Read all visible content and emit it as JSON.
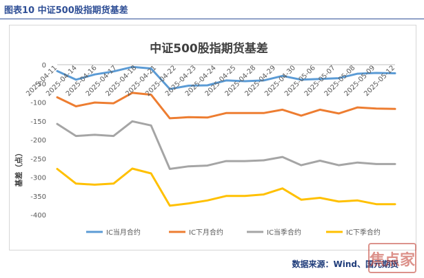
{
  "header": {
    "caption": "图表10  中证500股指期货基差"
  },
  "source": "数据来源：Wind、国元期货",
  "chart_data": {
    "type": "line",
    "title": "中证500股指期货基差",
    "ylabel": "基差（点）",
    "xlabel": "",
    "ylim": [
      -400,
      0
    ],
    "yticks": [
      0,
      -50,
      -100,
      -150,
      -200,
      -250,
      -300,
      -350,
      -400
    ],
    "grid": false,
    "legend_position": "bottom",
    "x": [
      "2025-04-11",
      "2025-04-14",
      "2025-04-15",
      "2025-04-16",
      "2025-04-17",
      "2025-04-18",
      "2025-04-21",
      "2025-04-22",
      "2025-04-23",
      "2025-04-24",
      "2025-04-25",
      "2025-04-28",
      "2025-04-29",
      "2025-04-30",
      "2025-05-06",
      "2025-05-07",
      "2025-05-08",
      "2025-05-09",
      "2025-05-12"
    ],
    "x_tick_labels": [
      "2025-04-11",
      "2025-04-14",
      "2025-04-16",
      "2025-04-17",
      "2025-04-18",
      "2025-04-21",
      "2025-04-22",
      "2025-04-23",
      "2025-04-24",
      "2025-04-25",
      "2025-04-28",
      "2025-04-29",
      "2025-04-30",
      "2025-05-06",
      "2025-05-07",
      "2025-05-08",
      "2025-05-09",
      "2025-05-12"
    ],
    "series": [
      {
        "name": "IC当月合约",
        "color": "#5b9bd5",
        "values": [
          -17,
          -40,
          -26,
          -18,
          -6,
          -10,
          -65,
          -56,
          -55,
          -42,
          -44,
          -42,
          -30,
          -40,
          -38,
          -36,
          -24,
          -22,
          -23
        ]
      },
      {
        "name": "IC下月合约",
        "color": "#ed7d31",
        "values": [
          -87,
          -111,
          -101,
          -103,
          -75,
          -80,
          -143,
          -140,
          -141,
          -129,
          -129,
          -129,
          -120,
          -136,
          -120,
          -130,
          -114,
          -117,
          -118
        ]
      },
      {
        "name": "IC当季合约",
        "color": "#a5a5a5",
        "values": [
          -158,
          -190,
          -187,
          -190,
          -151,
          -162,
          -278,
          -271,
          -269,
          -257,
          -257,
          -255,
          -246,
          -268,
          -256,
          -268,
          -261,
          -265,
          -265
        ]
      },
      {
        "name": "IC下季合约",
        "color": "#ffc000",
        "values": [
          -278,
          -317,
          -320,
          -317,
          -277,
          -290,
          -376,
          -370,
          -362,
          -350,
          -350,
          -346,
          -330,
          -360,
          -355,
          -365,
          -362,
          -372,
          -372
        ]
      }
    ]
  },
  "watermark": {
    "text": "焦点家",
    "color": "#c0392b"
  }
}
